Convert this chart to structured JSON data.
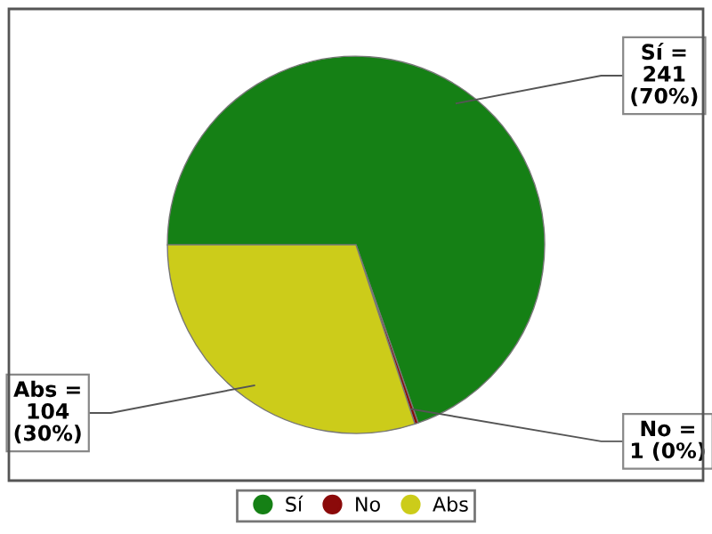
{
  "chart_data": {
    "type": "pie",
    "categories": [
      "Sí",
      "No",
      "Abs"
    ],
    "values": [
      241,
      1,
      104
    ],
    "colors": [
      "#158015",
      "#8b0a0a",
      "#cccc1a"
    ],
    "value_labels": [
      "Sí =\n241\n(70%)",
      "No =\n1 (0%)",
      "Abs =\n104\n(30%)"
    ],
    "legend": "bottom"
  }
}
